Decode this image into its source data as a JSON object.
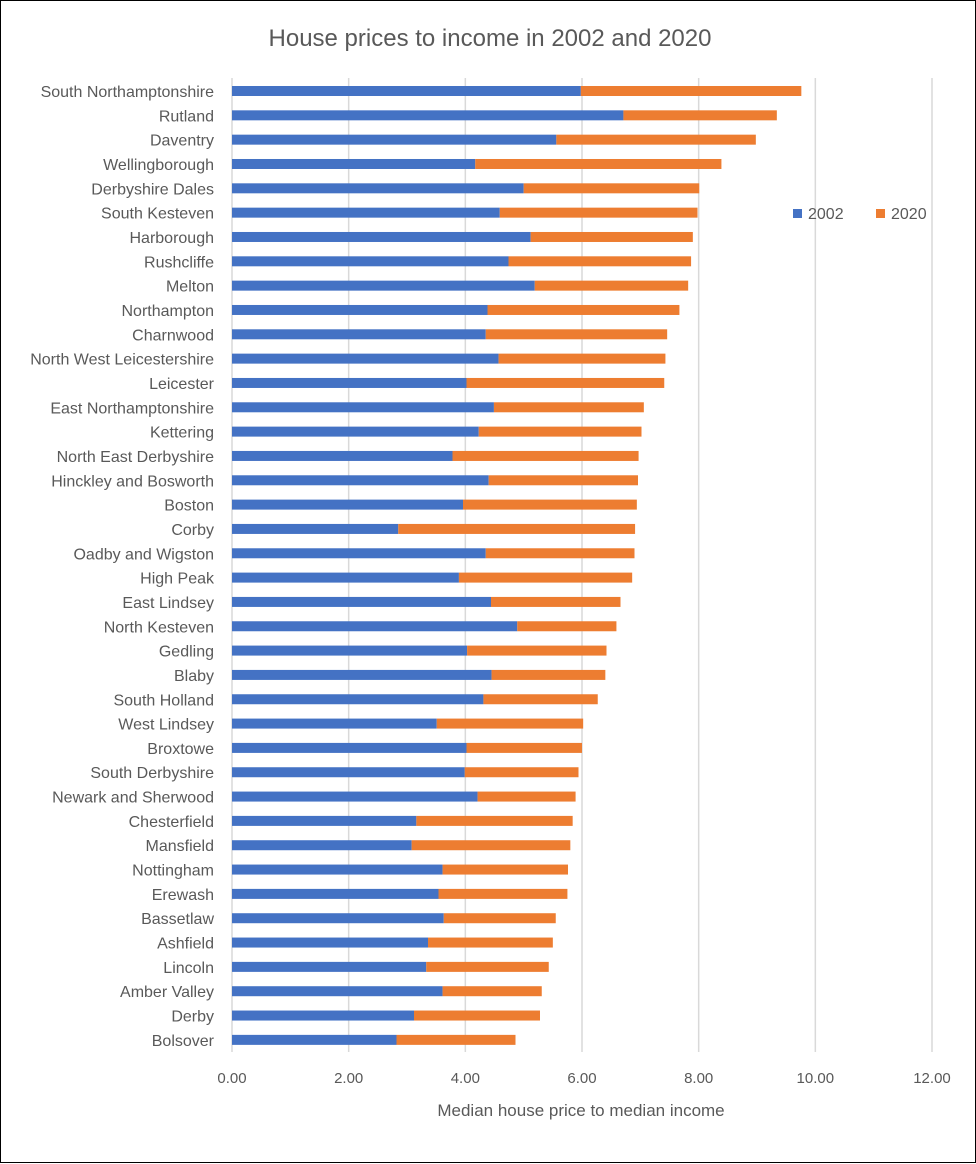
{
  "chart_data": {
    "type": "bar",
    "orientation": "horizontal",
    "stacked": true,
    "title": "House prices to income in 2002 and 2020",
    "xlabel": "Median house price to median income",
    "ylabel": "",
    "xlim": [
      0,
      12
    ],
    "xticks": [
      "0.00",
      "2.00",
      "4.00",
      "6.00",
      "8.00",
      "10.00",
      "12.00"
    ],
    "grid": true,
    "legend_position": "top-right",
    "categories": [
      "South Northamptonshire",
      "Rutland",
      "Daventry",
      "Wellingborough",
      "Derbyshire Dales",
      "South Kesteven",
      "Harborough",
      "Rushcliffe",
      "Melton",
      "Northampton",
      "Charnwood",
      "North West Leicestershire",
      "Leicester",
      "East Northamptonshire",
      "Kettering",
      "North East Derbyshire",
      "Hinckley and Bosworth",
      "Boston",
      "Corby",
      "Oadby and Wigston",
      "High Peak",
      "East Lindsey",
      "North Kesteven",
      "Gedling",
      "Blaby",
      "South Holland",
      "West Lindsey",
      "Broxtowe",
      "South Derbyshire",
      "Newark and Sherwood",
      "Chesterfield",
      "Mansfield",
      "Nottingham",
      "Erewash",
      "Bassetlaw",
      "Ashfield",
      "Lincoln",
      "Amber Valley",
      "Derby",
      "Bolsover"
    ],
    "series": [
      {
        "name": "2002",
        "color": "#4472C4",
        "values": [
          5.98,
          6.71,
          5.56,
          4.17,
          5.0,
          4.59,
          5.12,
          4.74,
          5.19,
          4.38,
          4.35,
          4.57,
          4.02,
          4.49,
          4.23,
          3.78,
          4.4,
          3.96,
          2.85,
          4.35,
          3.89,
          4.44,
          4.89,
          4.03,
          4.45,
          4.31,
          3.51,
          4.02,
          3.99,
          4.21,
          3.16,
          3.08,
          3.61,
          3.54,
          3.63,
          3.36,
          3.33,
          3.61,
          3.12,
          2.82
        ]
      },
      {
        "name": "2020",
        "color": "#ED7D31",
        "values": [
          3.78,
          2.63,
          3.42,
          4.22,
          3.01,
          3.39,
          2.78,
          3.13,
          2.63,
          3.29,
          3.11,
          2.86,
          3.39,
          2.57,
          2.79,
          3.19,
          2.56,
          2.98,
          4.06,
          2.55,
          2.97,
          2.22,
          1.7,
          2.39,
          1.95,
          1.96,
          2.51,
          1.98,
          1.95,
          1.68,
          2.68,
          2.72,
          2.15,
          2.21,
          1.92,
          2.14,
          2.1,
          1.7,
          2.16,
          2.04
        ]
      }
    ]
  }
}
